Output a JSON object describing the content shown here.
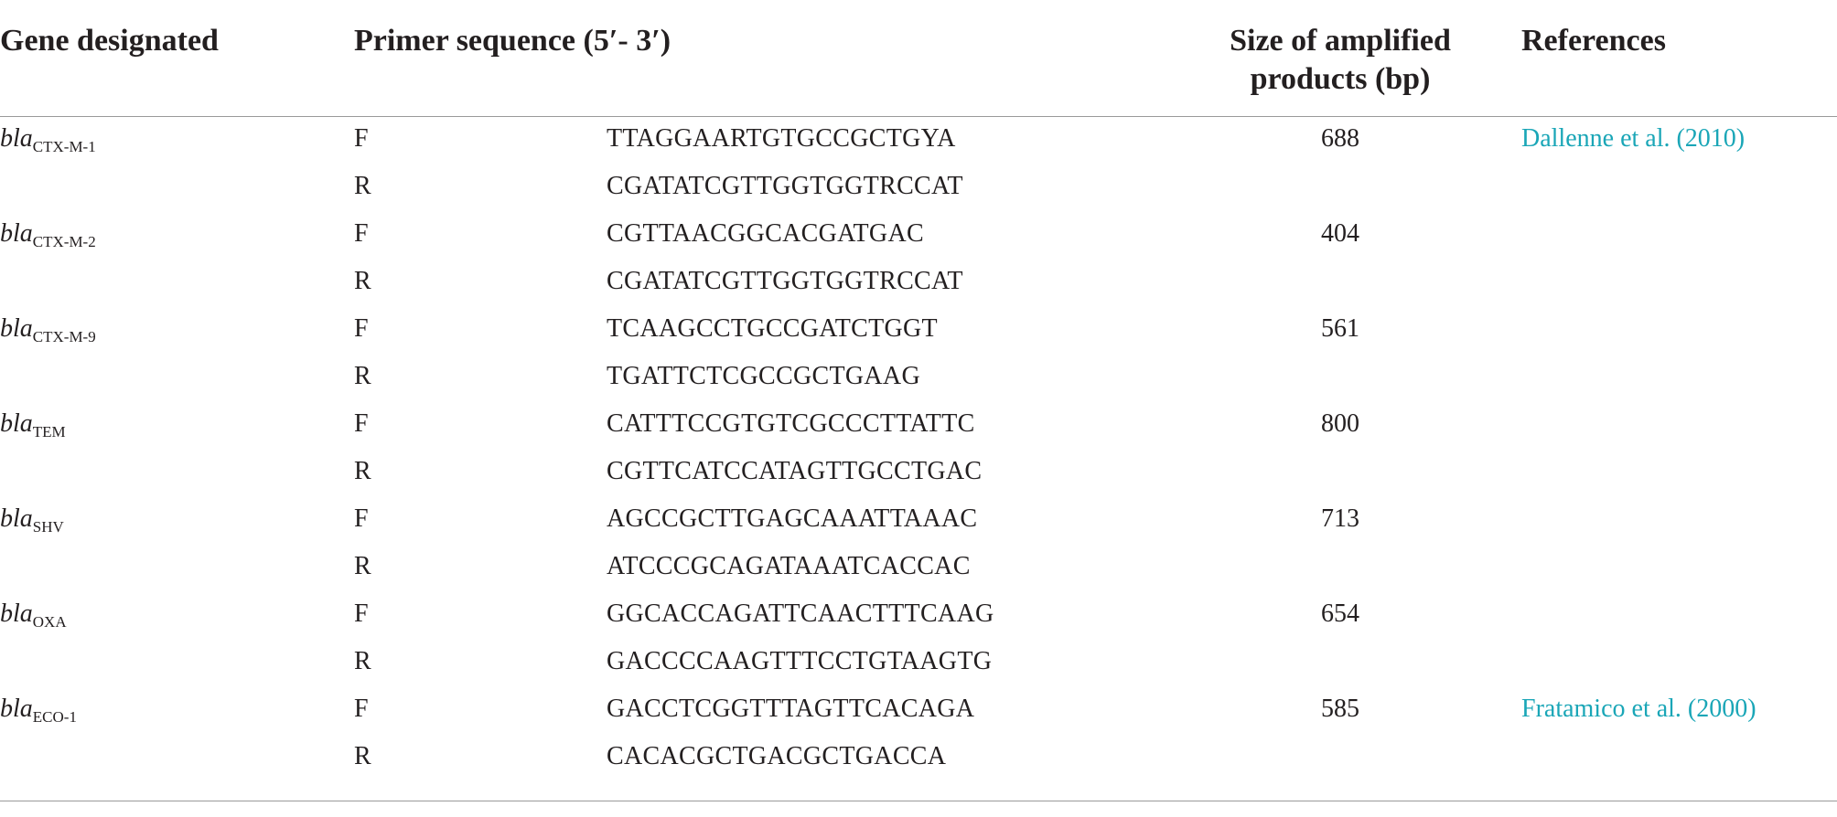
{
  "headers": {
    "gene": "Gene designated",
    "primer": "Primer sequence (5′- 3′)",
    "size_line1": "Size of amplified",
    "size_line2": "products (bp)",
    "references": "References"
  },
  "rows": [
    {
      "gene_prefix": "bla",
      "gene_sub": "CTX-M-1",
      "direction": "F",
      "sequence": "TTAGGAARTGTGCCGCTGYA",
      "size": "688",
      "reference": "Dallenne et al. (2010)"
    },
    {
      "gene_prefix": "",
      "gene_sub": "",
      "direction": "R",
      "sequence": "CGATATCGTTGGTGGTRCCAT",
      "size": "",
      "reference": ""
    },
    {
      "gene_prefix": "bla",
      "gene_sub": "CTX-M-2",
      "direction": "F",
      "sequence": "CGTTAACGGCACGATGAC",
      "size": "404",
      "reference": ""
    },
    {
      "gene_prefix": "",
      "gene_sub": "",
      "direction": "R",
      "sequence": "CGATATCGTTGGTGGTRCCAT",
      "size": "",
      "reference": ""
    },
    {
      "gene_prefix": "bla",
      "gene_sub": "CTX-M-9",
      "direction": "F",
      "sequence": "TCAAGCCTGCCGATCTGGT",
      "size": "561",
      "reference": ""
    },
    {
      "gene_prefix": "",
      "gene_sub": "",
      "direction": "R",
      "sequence": "TGATTCTCGCCGCTGAAG",
      "size": "",
      "reference": ""
    },
    {
      "gene_prefix": "bla",
      "gene_sub": "TEM",
      "direction": "F",
      "sequence": "CATTTCCGTGTCGCCCTTATTC",
      "size": "800",
      "reference": ""
    },
    {
      "gene_prefix": "",
      "gene_sub": "",
      "direction": "R",
      "sequence": "CGTTCATCCATAGTTGCCTGAC",
      "size": "",
      "reference": ""
    },
    {
      "gene_prefix": "bla",
      "gene_sub": "SHV",
      "direction": "F",
      "sequence": "AGCCGCTTGAGCAAATTAAAC",
      "size": "713",
      "reference": ""
    },
    {
      "gene_prefix": "",
      "gene_sub": "",
      "direction": "R",
      "sequence": "ATCCCGCAGATAAATCACCAC",
      "size": "",
      "reference": ""
    },
    {
      "gene_prefix": "bla",
      "gene_sub": "OXA",
      "direction": "F",
      "sequence": "GGCACCAGATTCAACTTTCAAG",
      "size": "654",
      "reference": ""
    },
    {
      "gene_prefix": "",
      "gene_sub": "",
      "direction": "R",
      "sequence": "GACCCCAAGTTTCCTGTAAGTG",
      "size": "",
      "reference": ""
    },
    {
      "gene_prefix": "bla",
      "gene_sub": "ECO-1",
      "direction": "F",
      "sequence": "GACCTCGGTTTAGTTCACAGA",
      "size": "585",
      "reference": "Fratamico et al. (2000)"
    },
    {
      "gene_prefix": "",
      "gene_sub": "",
      "direction": "R",
      "sequence": "CACACGCTGACGCTGACCA",
      "size": "",
      "reference": ""
    }
  ],
  "colors": {
    "link": "#1aa6b7",
    "text": "#231f20",
    "rule": "#9a9a9a"
  }
}
